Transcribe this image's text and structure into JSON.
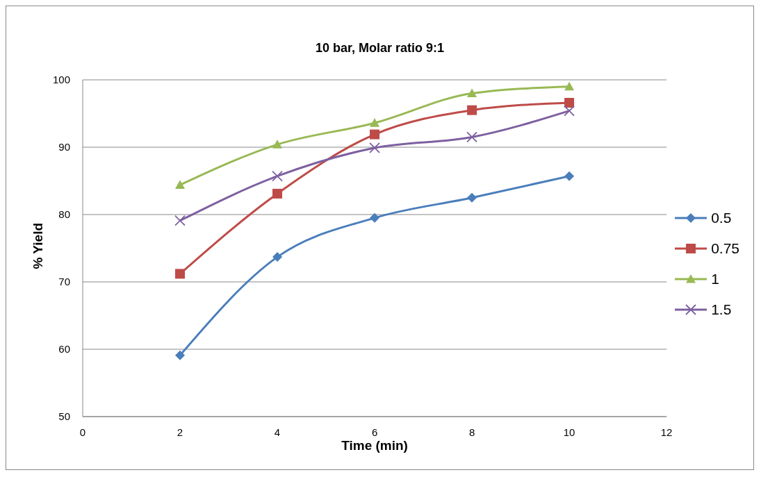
{
  "chart_data": {
    "type": "line",
    "title": "10 bar, Molar ratio 9:1",
    "xlabel": "Time (min)",
    "ylabel": "% Yield",
    "x": [
      2,
      4,
      6,
      8,
      10
    ],
    "xlim": [
      0,
      12
    ],
    "xticks": [
      0,
      2,
      4,
      6,
      8,
      10,
      12
    ],
    "ylim": [
      50,
      100
    ],
    "yticks": [
      50,
      60,
      70,
      80,
      90,
      100
    ],
    "grid": "y",
    "legend": "right",
    "series": [
      {
        "name": "0.5",
        "color": "#4a7ebb",
        "marker": "diamond",
        "values": [
          59.1,
          73.7,
          79.5,
          82.5,
          85.7
        ]
      },
      {
        "name": "0.75",
        "color": "#be4b48",
        "marker": "square",
        "values": [
          71.2,
          83.1,
          91.9,
          95.5,
          96.6
        ]
      },
      {
        "name": "1",
        "color": "#98b954",
        "marker": "triangle",
        "values": [
          84.4,
          90.4,
          93.6,
          98.0,
          99.0
        ]
      },
      {
        "name": "1.5",
        "color": "#7d60a0",
        "marker": "cross",
        "values": [
          79.1,
          85.7,
          89.9,
          91.5,
          95.4
        ]
      }
    ]
  }
}
